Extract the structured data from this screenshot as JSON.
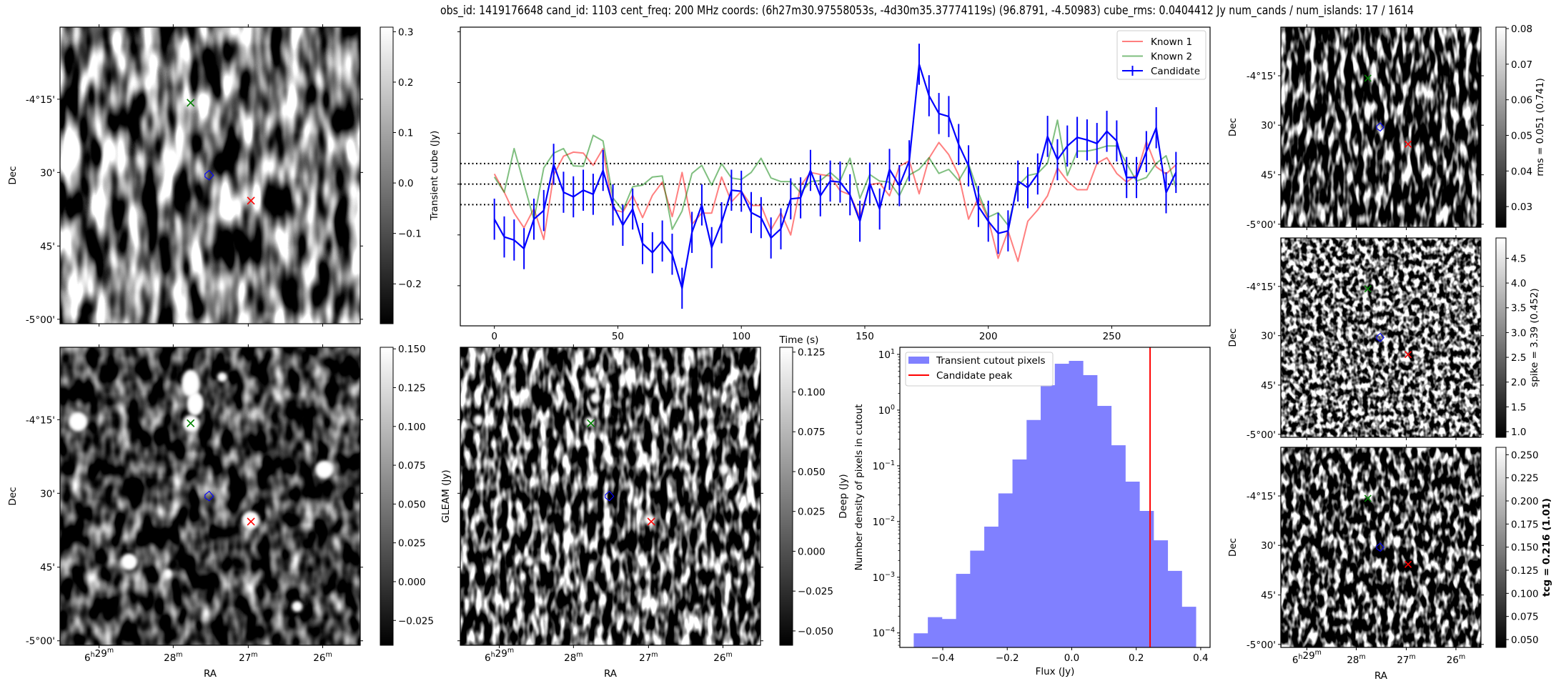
{
  "title": "obs_id: 1419176648 cand_id: 1103 cent_freq: 200 MHz coords: (6h27m30.97558053s, -4d30m35.37774119s) (96.8791, -4.50983) cube_rms: 0.0404412 Jy num_cands / num_islands: 17 / 1614",
  "colors": {
    "known1": "#ff0000",
    "known2": "#008000",
    "candidate": "#0000ff",
    "histogram": "#8080ff",
    "candidate_peak": "#ff0000",
    "rms_lines": "#000000",
    "marker_known1": "#ff0000",
    "marker_known2": "#008000",
    "marker_candidate": "#0000ff"
  },
  "image_axes": {
    "ra_label": "RA",
    "dec_label": "Dec",
    "ra_ticks": [
      "6h29m",
      "28m",
      "27m",
      "26m"
    ],
    "dec_ticks": [
      "-4°15'",
      "30'",
      "45'",
      "-5°00'"
    ]
  },
  "chart_data": [
    {
      "type": "heatmap",
      "name": "transient_cube_cutout",
      "colormap": "gray",
      "colorbar": {
        "label": "Transient cube (Jy)",
        "range": [
          -0.279,
          0.309
        ],
        "ticks": [
          0.3,
          0.2,
          0.1,
          0.0,
          -0.1,
          -0.2
        ],
        "tick_labels": [
          "0.3",
          "0.2",
          "0.1",
          "0.0",
          "−0.1",
          "−0.2"
        ]
      }
    },
    {
      "type": "line",
      "name": "light_curve",
      "xlabel": "Time (s)",
      "ylabel": "",
      "xlim": [
        -13.8,
        289.8
      ],
      "ylim": [
        -0.279,
        0.309
      ],
      "x_ticks": [
        0,
        50,
        100,
        150,
        200,
        250
      ],
      "x_tick_labels": [
        "0",
        "50",
        "100",
        "150",
        "200",
        "250"
      ],
      "y_ticks": [
        0.3,
        0.2,
        0.1,
        0.0,
        -0.1,
        -0.2
      ],
      "hlines": [
        0.0404412,
        0.0,
        -0.0404412
      ],
      "legend_position": "top-right",
      "x": [
        0,
        4,
        8,
        12,
        16,
        20,
        24,
        28,
        32,
        36,
        40,
        44,
        48,
        52,
        56,
        60,
        64,
        68,
        72,
        76,
        80,
        84,
        88,
        92,
        96,
        100,
        104,
        108,
        112,
        116,
        120,
        124,
        128,
        132,
        136,
        140,
        144,
        148,
        152,
        156,
        160,
        164,
        168,
        172,
        176,
        180,
        184,
        188,
        192,
        196,
        200,
        204,
        208,
        212,
        216,
        220,
        224,
        228,
        232,
        236,
        240,
        244,
        248,
        252,
        256,
        260,
        264,
        268,
        272,
        276
      ],
      "series": [
        {
          "name": "Known 1",
          "color_key": "known1",
          "alpha": 0.5,
          "values": [
            0.02,
            -0.016,
            -0.057,
            -0.086,
            -0.048,
            -0.109,
            0.018,
            0.055,
            0.063,
            0.061,
            0.037,
            0.07,
            -0.05,
            -0.055,
            -0.022,
            -0.066,
            -0.022,
            0.004,
            -0.064,
            0.023,
            -0.079,
            -0.057,
            -0.057,
            0.014,
            -0.035,
            -0.014,
            -0.042,
            -0.042,
            -0.09,
            -0.056,
            -0.1,
            -0.003,
            0.023,
            0.019,
            0.016,
            -0.013,
            -0.021,
            -0.065,
            -0.001,
            0.002,
            -0.023,
            0.035,
            0.046,
            -0.019,
            0.051,
            0.082,
            0.058,
            0.018,
            -0.069,
            -0.026,
            -0.069,
            -0.146,
            -0.092,
            -0.152,
            -0.073,
            -0.051,
            -0.023,
            0.032,
            0.006,
            -0.011,
            -0.011,
            0.041,
            0.052,
            0.021,
            0.004,
            0.018,
            0.084,
            0.034,
            0.02,
            0.038
          ]
        },
        {
          "name": "Known 2",
          "color_key": "known2",
          "alpha": 0.5,
          "values": [
            0.014,
            -0.016,
            0.07,
            0.0,
            -0.07,
            0.032,
            0.061,
            0.07,
            0.036,
            0.035,
            0.096,
            0.085,
            -0.027,
            -0.052,
            -0.005,
            -0.002,
            0.014,
            0.016,
            -0.089,
            -0.053,
            0.021,
            0.037,
            -0.002,
            0.04,
            0.012,
            0.009,
            0.023,
            0.051,
            0.012,
            0.005,
            0.005,
            -0.017,
            0.005,
            0.007,
            0.023,
            0.006,
            0.051,
            -0.028,
            0.019,
            0.006,
            0.004,
            -0.023,
            0.018,
            0.029,
            0.052,
            0.021,
            0.029,
            0.007,
            0.04,
            -0.017,
            -0.065,
            -0.056,
            -0.081,
            -0.003,
            0.017,
            0.021,
            0.041,
            0.126,
            0.017,
            0.065,
            0.065,
            0.069,
            0.075,
            0.075,
            0.041,
            0.006,
            0.013,
            0.041,
            0.056,
            -0.007
          ]
        },
        {
          "name": "Candidate",
          "color_key": "candidate",
          "alpha": 1.0,
          "error": 0.0404412,
          "values": [
            -0.069,
            -0.104,
            -0.11,
            -0.127,
            -0.069,
            -0.052,
            0.039,
            -0.016,
            -0.025,
            -0.012,
            -0.02,
            0.027,
            -0.041,
            -0.081,
            -0.049,
            -0.117,
            -0.135,
            -0.112,
            -0.138,
            -0.205,
            -0.095,
            -0.041,
            -0.125,
            -0.076,
            -0.012,
            -0.014,
            -0.056,
            -0.066,
            -0.106,
            -0.088,
            -0.029,
            -0.027,
            0.027,
            -0.023,
            0.006,
            0.004,
            -0.021,
            -0.073,
            0.002,
            -0.049,
            0.029,
            -0.003,
            0.046,
            0.236,
            0.174,
            0.139,
            0.133,
            0.078,
            0.036,
            -0.044,
            -0.073,
            -0.097,
            -0.092,
            0.006,
            -0.007,
            0.02,
            0.094,
            0.048,
            0.075,
            0.092,
            0.087,
            0.08,
            0.104,
            0.085,
            0.013,
            0.013,
            0.064,
            0.111,
            -0.017,
            0.023
          ]
        }
      ]
    },
    {
      "type": "heatmap",
      "name": "rms_cutout",
      "colormap": "gray",
      "colorbar": {
        "label": "rms = 0.051 (0.741)",
        "bold": false,
        "range": [
          0.0242,
          0.0804
        ],
        "ticks": [
          0.08,
          0.07,
          0.06,
          0.05,
          0.04,
          0.03
        ],
        "tick_labels": [
          "0.08",
          "0.07",
          "0.06",
          "0.05",
          "0.04",
          "0.03"
        ]
      }
    },
    {
      "type": "heatmap",
      "name": "spike_cutout",
      "colormap": "gray",
      "colorbar": {
        "label": "spike = 3.39 (0.452)",
        "bold": false,
        "range": [
          0.885,
          4.91
        ],
        "ticks": [
          4.5,
          4.0,
          3.5,
          3.0,
          2.5,
          2.0,
          1.5,
          1.0
        ],
        "tick_labels": [
          "4.5",
          "4.0",
          "3.5",
          "3.0",
          "2.5",
          "2.0",
          "1.5",
          "1.0"
        ]
      }
    },
    {
      "type": "heatmap",
      "name": "gleam_cutout",
      "colormap": "gray",
      "colorbar": {
        "label": "GLEAM (Jy)",
        "range": [
          -0.041,
          0.151
        ],
        "ticks": [
          0.15,
          0.125,
          0.1,
          0.075,
          0.05,
          0.025,
          0.0,
          -0.025
        ],
        "tick_labels": [
          "0.150",
          "0.125",
          "0.100",
          "0.075",
          "0.050",
          "0.025",
          "0.000",
          "−0.025"
        ]
      }
    },
    {
      "type": "heatmap",
      "name": "deep_cutout",
      "colormap": "gray",
      "colorbar": {
        "label": "Deep (Jy)",
        "range": [
          -0.059,
          0.128
        ],
        "ticks": [
          0.125,
          0.1,
          0.075,
          0.05,
          0.025,
          0.0,
          -0.025,
          -0.05
        ],
        "tick_labels": [
          "0.125",
          "0.100",
          "0.075",
          "0.050",
          "0.025",
          "0.000",
          "−0.025",
          "−0.050"
        ]
      }
    },
    {
      "type": "bar",
      "name": "pixel_histogram",
      "xlabel": "Flux (Jy)",
      "ylabel": "Number density of pixels in cutout",
      "yscale": "log",
      "xlim": [
        -0.533,
        0.429
      ],
      "ylim_log10": [
        -4.26,
        1.128
      ],
      "x_ticks": [
        -0.4,
        -0.2,
        0.0,
        0.2,
        0.4
      ],
      "x_tick_labels": [
        "−0.4",
        "−0.2",
        "0.0",
        "0.2",
        "0.4"
      ],
      "y_tick_exponents": [
        1,
        0,
        -1,
        -2,
        -3,
        -4
      ],
      "y_tick_labels": [
        "1",
        "0",
        "−1",
        "−2",
        "−3",
        "−4"
      ],
      "y_tick_base": "10",
      "bin_start": -0.49,
      "bin_width": 0.04375,
      "values": [
        9.85e-05,
        0.000192,
        0.000178,
        0.00115,
        0.003,
        0.0081,
        0.032,
        0.13,
        0.665,
        2.8,
        6.8,
        7.66,
        4.25,
        1.19,
        0.234,
        0.052,
        0.0155,
        0.0046,
        0.0013,
        0.000295
      ],
      "vline": 0.243,
      "legend_position": "top-left",
      "legend": [
        "Transient cutout pixels",
        "Candidate peak"
      ]
    },
    {
      "type": "heatmap",
      "name": "tcg_cutout",
      "colormap": "gray",
      "colorbar": {
        "label": "tcg = 0.216 (1.01)",
        "bold": true,
        "range": [
          0.0415,
          0.258
        ],
        "ticks": [
          0.25,
          0.225,
          0.2,
          0.175,
          0.15,
          0.125,
          0.1,
          0.075,
          0.05
        ],
        "tick_labels": [
          "0.250",
          "0.225",
          "0.200",
          "0.175",
          "0.150",
          "0.125",
          "0.100",
          "0.075",
          "0.050"
        ]
      }
    }
  ]
}
